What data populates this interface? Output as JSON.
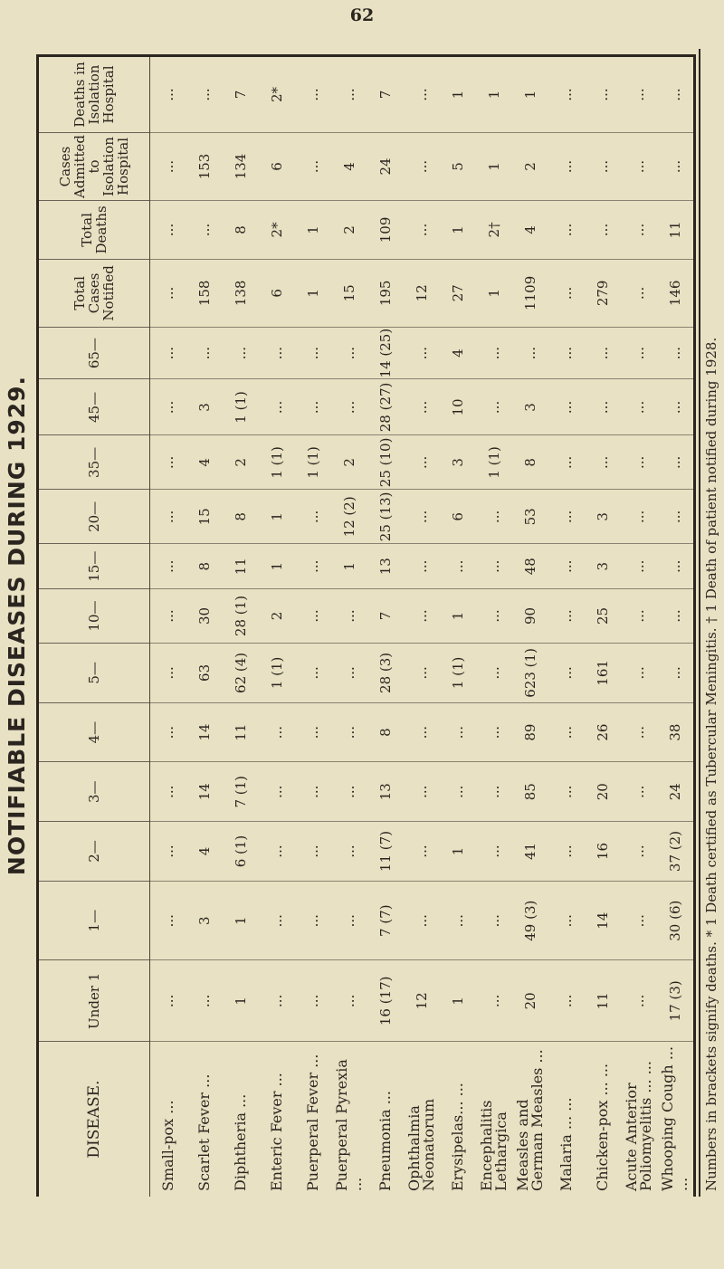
{
  "page_number": "62",
  "title": "NOTIFIABLE DISEASES DURING 1929.",
  "table": {
    "headers": [
      "DISEASE.",
      "Under 1",
      "1—",
      "2—",
      "3—",
      "4—",
      "5—",
      "10—",
      "15—",
      "20—",
      "35—",
      "45—",
      "65—",
      "Total Cases Notified",
      "Total Deaths",
      "Cases Admitted to Isolation Hospital",
      "Deaths in Isolation Hospital"
    ],
    "rows": [
      {
        "disease": "Small-pox ...",
        "values": [
          "...",
          "...",
          "...",
          "...",
          "...",
          "...",
          "...",
          "...",
          "...",
          "...",
          "...",
          "...",
          "...",
          "...",
          "...",
          "..."
        ]
      },
      {
        "disease": "Scarlet Fever ...",
        "values": [
          "...",
          "3",
          "4",
          "14",
          "14",
          "63",
          "30",
          "8",
          "15",
          "4",
          "3",
          "...",
          "158",
          "...",
          "153",
          "..."
        ]
      },
      {
        "disease": "Diphtheria ...",
        "values": [
          "1",
          "1",
          "6 (1)",
          "7 (1)",
          "11",
          "62 (4)",
          "28 (1)",
          "11",
          "8",
          "2",
          "1 (1)",
          "...",
          "138",
          "8",
          "134",
          "7"
        ]
      },
      {
        "disease": "Enteric Fever ...",
        "values": [
          "...",
          "...",
          "...",
          "...",
          "...",
          "1 (1)",
          "2",
          "1",
          "1",
          "1 (1)",
          "...",
          "...",
          "6",
          "2*",
          "6",
          "2*"
        ]
      },
      {
        "disease": "Puerperal Fever ...",
        "values": [
          "...",
          "...",
          "...",
          "...",
          "...",
          "...",
          "...",
          "...",
          "...",
          "1 (1)",
          "...",
          "...",
          "1",
          "1",
          "...",
          "..."
        ]
      },
      {
        "disease": "Puerperal Pyrexia ...",
        "values": [
          "...",
          "...",
          "...",
          "...",
          "...",
          "...",
          "...",
          "1",
          "12 (2)",
          "2",
          "...",
          "...",
          "15",
          "2",
          "4",
          "..."
        ]
      },
      {
        "disease": "Pneumonia ...",
        "values": [
          "16 (17)",
          "7 (7)",
          "11 (7)",
          "13",
          "8",
          "28 (3)",
          "7",
          "13",
          "25 (13)",
          "25 (10)",
          "28 (27)",
          "14 (25)",
          "195",
          "109",
          "24",
          "7"
        ]
      },
      {
        "disease": "Ophthalmia Neonatorum",
        "values": [
          "12",
          "...",
          "...",
          "...",
          "...",
          "...",
          "...",
          "...",
          "...",
          "...",
          "...",
          "...",
          "12",
          "...",
          "...",
          "..."
        ]
      },
      {
        "disease": "Erysipelas... ...",
        "values": [
          "1",
          "...",
          "1",
          "...",
          "...",
          "1 (1)",
          "1",
          "...",
          "6",
          "3",
          "10",
          "4",
          "27",
          "1",
          "5",
          "1"
        ]
      },
      {
        "disease": "Encephalitis Lethargica",
        "values": [
          "...",
          "...",
          "...",
          "...",
          "...",
          "...",
          "...",
          "...",
          "...",
          "1 (1)",
          "...",
          "...",
          "1",
          "2†",
          "1",
          "1"
        ]
      },
      {
        "disease": "Measles and German Measles ...",
        "values": [
          "20",
          "49 (3)",
          "41",
          "85",
          "89",
          "623 (1)",
          "90",
          "48",
          "53",
          "8",
          "3",
          "...",
          "1109",
          "4",
          "2",
          "1"
        ]
      },
      {
        "disease": "Malaria ... ...",
        "values": [
          "...",
          "...",
          "...",
          "...",
          "...",
          "...",
          "...",
          "...",
          "...",
          "...",
          "...",
          "...",
          "...",
          "...",
          "...",
          "..."
        ]
      },
      {
        "disease": "Chicken-pox ... ...",
        "values": [
          "11",
          "14",
          "16",
          "20",
          "26",
          "161",
          "25",
          "3",
          "3",
          "...",
          "...",
          "...",
          "279",
          "...",
          "...",
          "..."
        ]
      },
      {
        "disease": "Acute Anterior Poliomyelitis ... ...",
        "values": [
          "...",
          "...",
          "...",
          "...",
          "...",
          "...",
          "...",
          "...",
          "...",
          "...",
          "...",
          "...",
          "...",
          "...",
          "...",
          "..."
        ]
      },
      {
        "disease": "Whooping Cough ... ...",
        "values": [
          "17 (3)",
          "30 (6)",
          "37 (2)",
          "24",
          "38",
          "...",
          "...",
          "...",
          "...",
          "...",
          "...",
          "...",
          "146",
          "11",
          "...",
          "..."
        ]
      }
    ]
  },
  "footnote": "Numbers in brackets signify deaths. * 1 Death certified as Tubercular Meningitis. † 1 Death of patient notified during 1928."
}
